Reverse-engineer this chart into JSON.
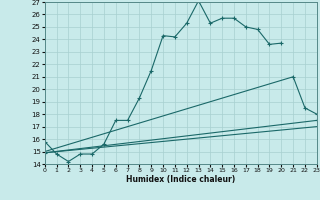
{
  "xlabel": "Humidex (Indice chaleur)",
  "background_color": "#c8eaea",
  "grid_color": "#a8d0d0",
  "line_color": "#1a6868",
  "xlim": [
    0,
    23
  ],
  "ylim": [
    14,
    27
  ],
  "xticks": [
    0,
    1,
    2,
    3,
    4,
    5,
    6,
    7,
    8,
    9,
    10,
    11,
    12,
    13,
    14,
    15,
    16,
    17,
    18,
    19,
    20,
    21,
    22,
    23
  ],
  "yticks": [
    14,
    15,
    16,
    17,
    18,
    19,
    20,
    21,
    22,
    23,
    24,
    25,
    26,
    27
  ],
  "curve1": {
    "x": [
      0,
      1,
      2,
      3,
      4,
      5,
      6,
      7,
      8,
      9,
      10,
      11,
      12,
      13,
      14,
      15,
      16,
      17,
      18,
      19,
      20
    ],
    "y": [
      15.8,
      14.8,
      14.2,
      14.8,
      14.8,
      15.6,
      17.5,
      17.5,
      19.3,
      21.5,
      24.3,
      24.2,
      25.3,
      27.1,
      25.3,
      25.7,
      25.7,
      25.0,
      24.8,
      23.6,
      23.7
    ]
  },
  "curve2": {
    "x": [
      0,
      21,
      22,
      23
    ],
    "y": [
      15.0,
      21.0,
      18.5,
      18.0
    ]
  },
  "line3": {
    "x": [
      0,
      23
    ],
    "y": [
      14.9,
      17.5
    ]
  },
  "line4": {
    "x": [
      0,
      23
    ],
    "y": [
      14.9,
      17.0
    ]
  }
}
